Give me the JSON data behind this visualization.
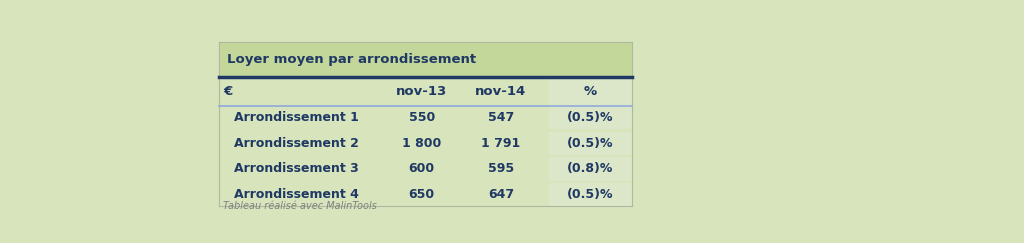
{
  "title": "Loyer moyen par arrondissement",
  "col_headers": [
    "€",
    "nov-13",
    "nov-14",
    "%"
  ],
  "rows": [
    [
      "Arrondissement 1",
      "550",
      "547",
      "(0.5)%"
    ],
    [
      "Arrondissement 2",
      "1 800",
      "1 791",
      "(0.5)%"
    ],
    [
      "Arrondissement 3",
      "600",
      "595",
      "(0.8)%"
    ],
    [
      "Arrondissement 4",
      "650",
      "647",
      "(0.5)%"
    ]
  ],
  "table_bg": "#d8e4bc",
  "title_bg": "#c4d79b",
  "last_col_bg": "#dce6c8",
  "header_line_color": "#1f3864",
  "subheader_line_color": "#8eaadb",
  "text_color": "#1f3864",
  "footer_text": "Tableau réalisé avec MalinTools",
  "footer_color": "#7f7f7f",
  "figure_bg": "#d8e4bc",
  "border_color": "#b0b8a0"
}
